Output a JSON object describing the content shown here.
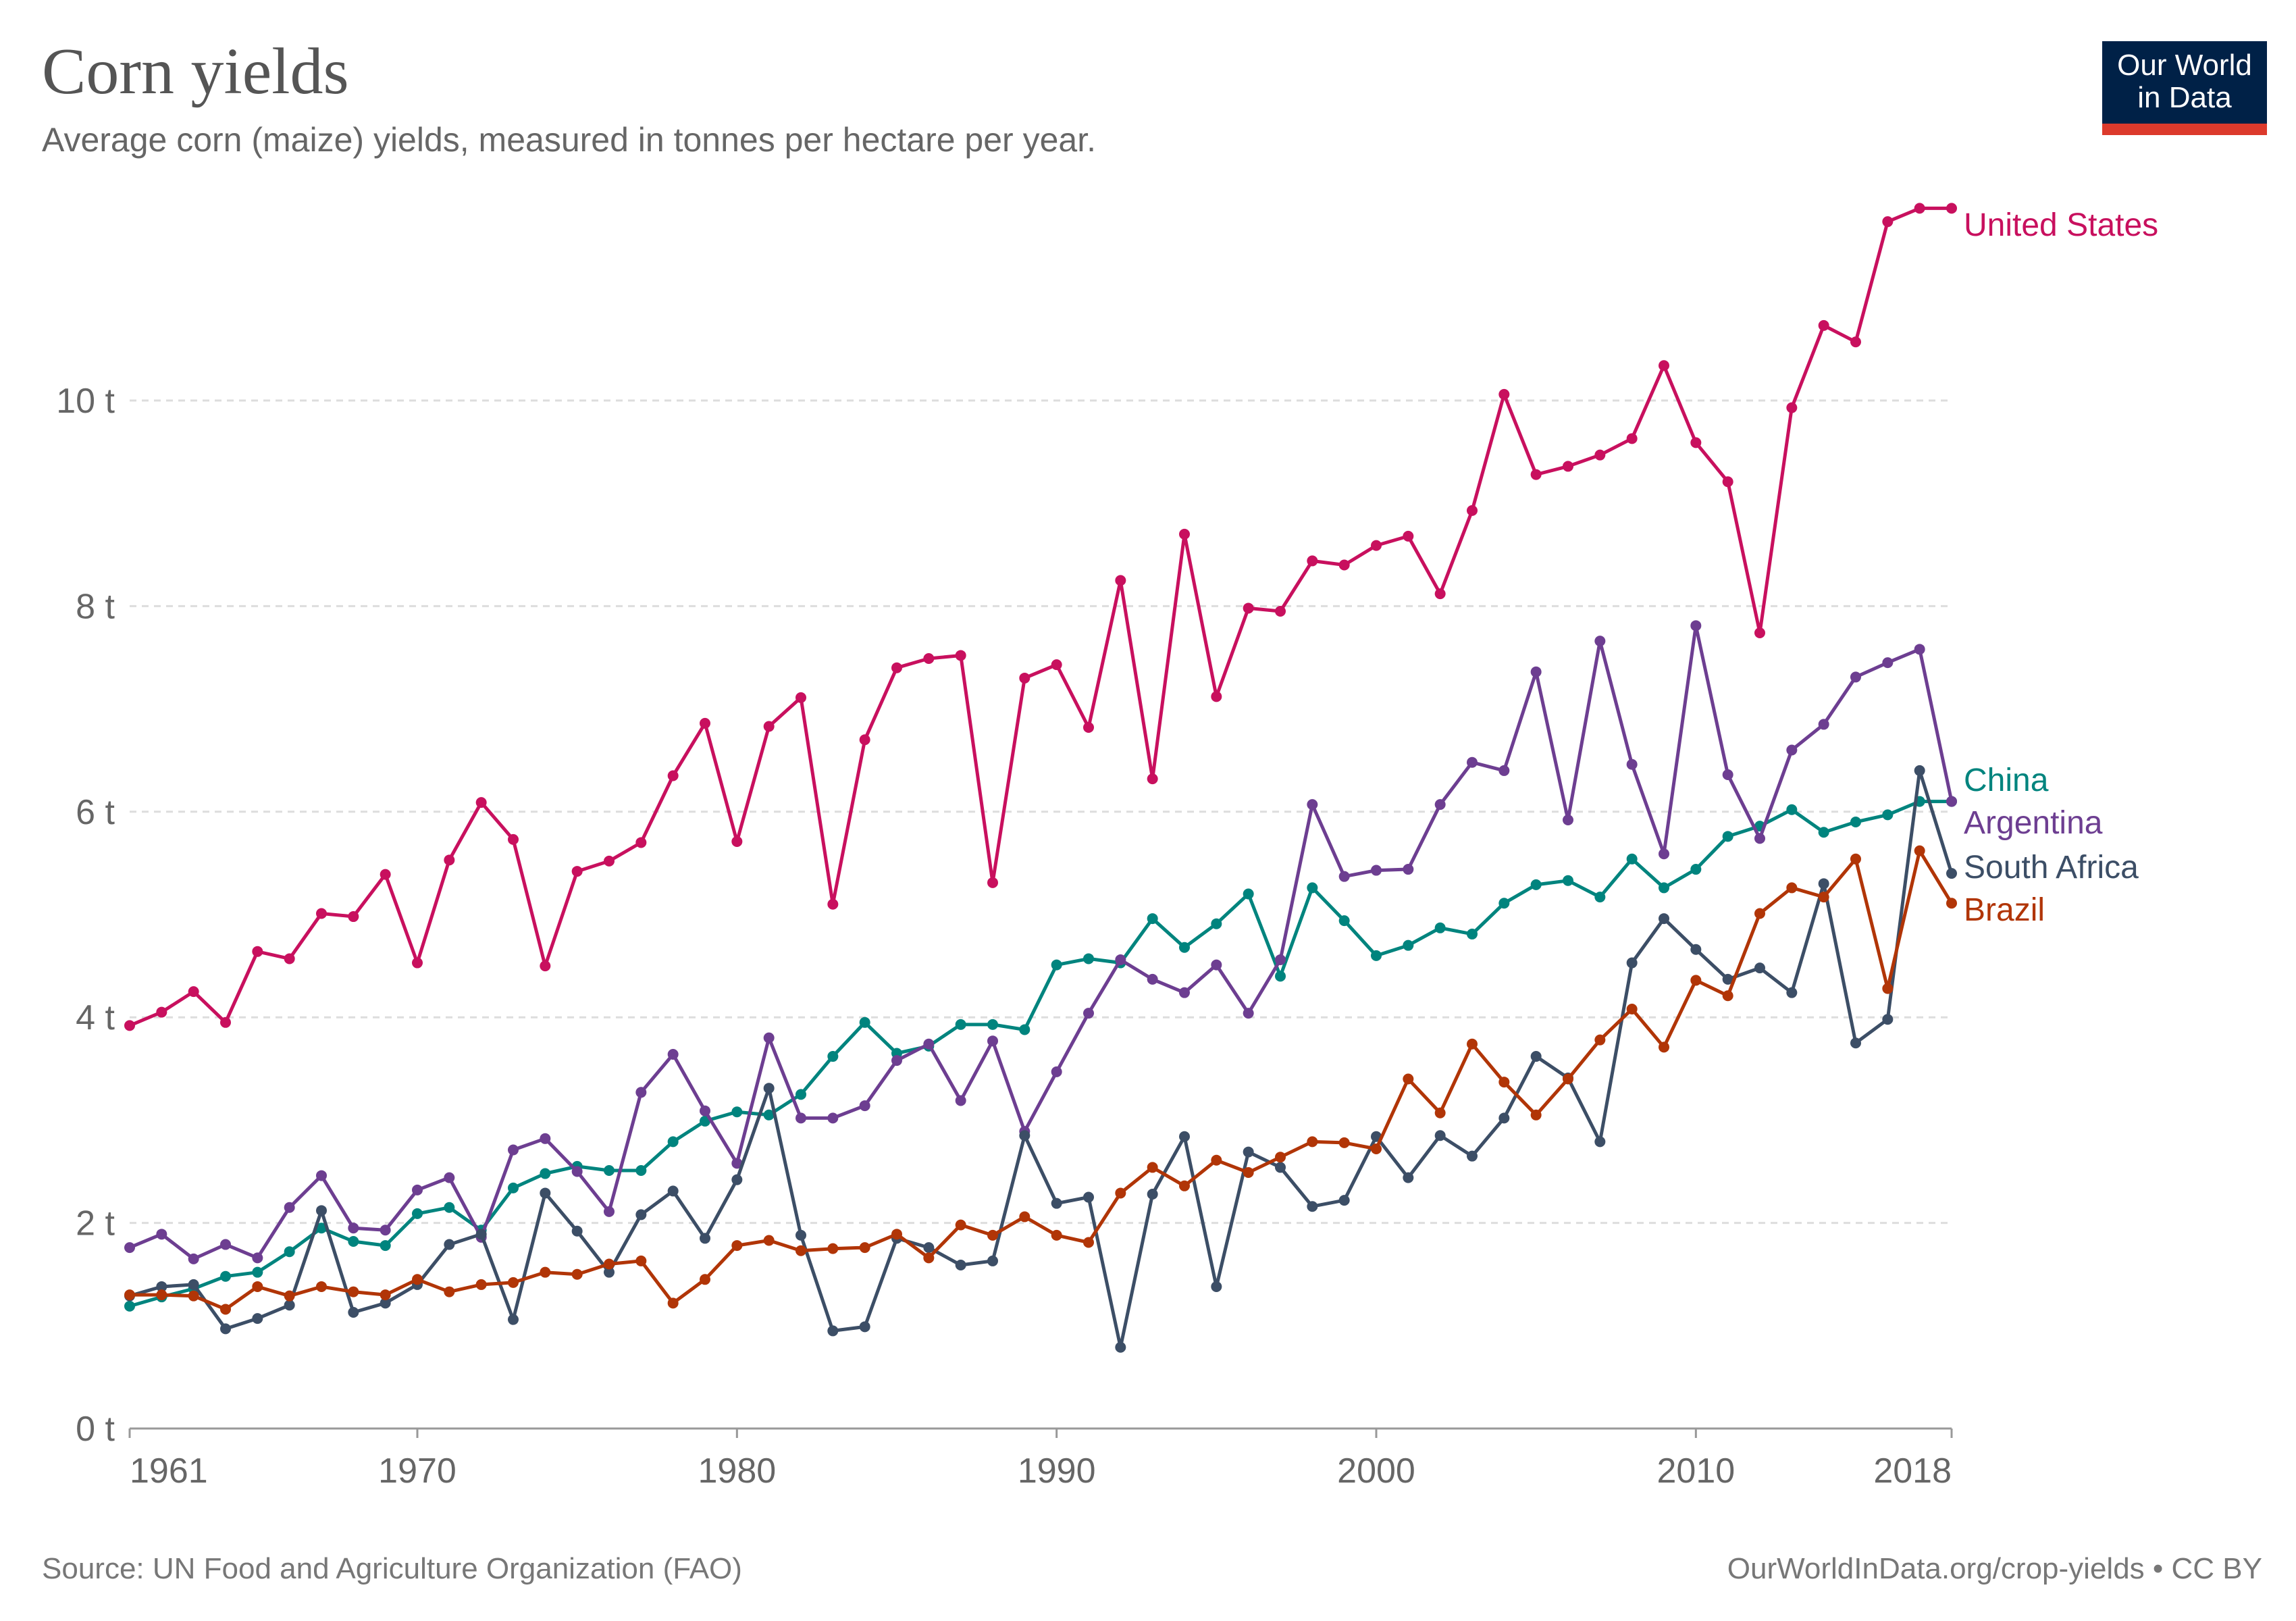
{
  "header": {
    "title": "Corn yields",
    "subtitle": "Average corn (maize) yields, measured in tonnes per hectare per year.",
    "logo_text": [
      "Our World",
      "in Data"
    ]
  },
  "footer": {
    "source": "Source: UN Food and Agriculture Organization (FAO)",
    "license": "OurWorldInData.org/crop-yields • CC BY"
  },
  "chart_data": {
    "type": "line",
    "title": "Corn yields",
    "subtitle": "Average corn (maize) yields, measured in tonnes per hectare per year.",
    "xlabel": "",
    "ylabel": "",
    "xlim": [
      1961,
      2018
    ],
    "ylim": [
      0,
      12
    ],
    "grid": true,
    "legend": "right (line-end labels)",
    "x_ticks": [
      "1961",
      "1970",
      "1980",
      "1990",
      "2000",
      "2010",
      "2018"
    ],
    "y_ticks": [
      "0 t",
      "2 t",
      "4 t",
      "6 t",
      "8 t",
      "10 t"
    ],
    "x_start": 1961,
    "series": [
      {
        "name": "United States",
        "color": "#c8105e",
        "values": [
          3.92,
          4.05,
          4.25,
          3.95,
          4.64,
          4.57,
          5.01,
          4.98,
          5.39,
          4.53,
          5.53,
          6.09,
          5.73,
          4.5,
          5.42,
          5.52,
          5.7,
          6.35,
          6.86,
          5.71,
          6.83,
          7.11,
          5.1,
          6.7,
          7.4,
          7.49,
          7.52,
          5.31,
          7.3,
          7.43,
          6.82,
          8.25,
          6.32,
          8.7,
          7.12,
          7.98,
          7.95,
          8.44,
          8.4,
          8.59,
          8.68,
          8.12,
          8.93,
          10.06,
          9.28,
          9.36,
          9.47,
          9.63,
          10.34,
          9.59,
          9.21,
          7.74,
          9.93,
          10.73,
          10.57,
          11.74,
          11.87,
          11.87
        ]
      },
      {
        "name": "China",
        "color": "#00847e",
        "values": [
          1.19,
          1.28,
          1.36,
          1.48,
          1.52,
          1.72,
          1.95,
          1.82,
          1.78,
          2.09,
          2.15,
          1.93,
          2.34,
          2.48,
          2.55,
          2.51,
          2.51,
          2.79,
          2.99,
          3.08,
          3.05,
          3.25,
          3.62,
          3.95,
          3.65,
          3.72,
          3.93,
          3.93,
          3.88,
          4.51,
          4.57,
          4.53,
          4.96,
          4.68,
          4.91,
          5.2,
          4.4,
          5.26,
          4.94,
          4.6,
          4.7,
          4.87,
          4.81,
          5.11,
          5.29,
          5.33,
          5.17,
          5.54,
          5.26,
          5.44,
          5.76,
          5.86,
          6.02,
          5.8,
          5.9,
          5.97,
          6.1,
          6.1
        ]
      },
      {
        "name": "Argentina",
        "color": "#6d3e91",
        "values": [
          1.76,
          1.89,
          1.65,
          1.79,
          1.66,
          2.15,
          2.46,
          1.95,
          1.93,
          2.32,
          2.44,
          1.86,
          2.71,
          2.82,
          2.5,
          2.11,
          3.27,
          3.64,
          3.09,
          2.58,
          3.8,
          3.02,
          3.02,
          3.14,
          3.58,
          3.74,
          3.19,
          3.77,
          2.89,
          3.47,
          4.04,
          4.56,
          4.37,
          4.24,
          4.51,
          4.04,
          4.56,
          6.07,
          5.37,
          5.43,
          5.44,
          6.07,
          6.48,
          6.4,
          7.36,
          5.92,
          7.66,
          6.46,
          5.59,
          7.81,
          6.36,
          5.74,
          6.6,
          6.85,
          7.31,
          7.45,
          7.58,
          6.1
        ]
      },
      {
        "name": "South Africa",
        "color": "#3c4e66",
        "values": [
          1.29,
          1.38,
          1.4,
          0.97,
          1.07,
          1.2,
          2.12,
          1.13,
          1.22,
          1.4,
          1.79,
          1.89,
          1.06,
          2.29,
          1.92,
          1.52,
          2.08,
          2.31,
          1.85,
          2.42,
          3.31,
          1.88,
          0.95,
          0.99,
          1.85,
          1.76,
          1.59,
          1.63,
          2.85,
          2.19,
          2.25,
          0.79,
          2.28,
          2.84,
          1.38,
          2.69,
          2.54,
          2.16,
          2.22,
          2.84,
          2.44,
          2.85,
          2.65,
          3.02,
          3.62,
          3.41,
          2.79,
          4.53,
          4.96,
          4.66,
          4.37,
          4.48,
          4.24,
          5.3,
          3.75,
          3.98,
          6.4,
          5.4
        ]
      },
      {
        "name": "Brazil",
        "color": "#b13507",
        "values": [
          1.3,
          1.3,
          1.29,
          1.16,
          1.38,
          1.29,
          1.38,
          1.33,
          1.3,
          1.45,
          1.33,
          1.4,
          1.42,
          1.52,
          1.5,
          1.6,
          1.63,
          1.22,
          1.45,
          1.78,
          1.83,
          1.73,
          1.75,
          1.76,
          1.89,
          1.66,
          1.98,
          1.88,
          2.06,
          1.88,
          1.81,
          2.29,
          2.54,
          2.36,
          2.61,
          2.49,
          2.64,
          2.79,
          2.78,
          2.72,
          3.4,
          3.07,
          3.74,
          3.37,
          3.05,
          3.4,
          3.78,
          4.08,
          3.71,
          4.36,
          4.21,
          5.01,
          5.26,
          5.17,
          5.54,
          4.28,
          5.62,
          5.11
        ]
      }
    ]
  }
}
